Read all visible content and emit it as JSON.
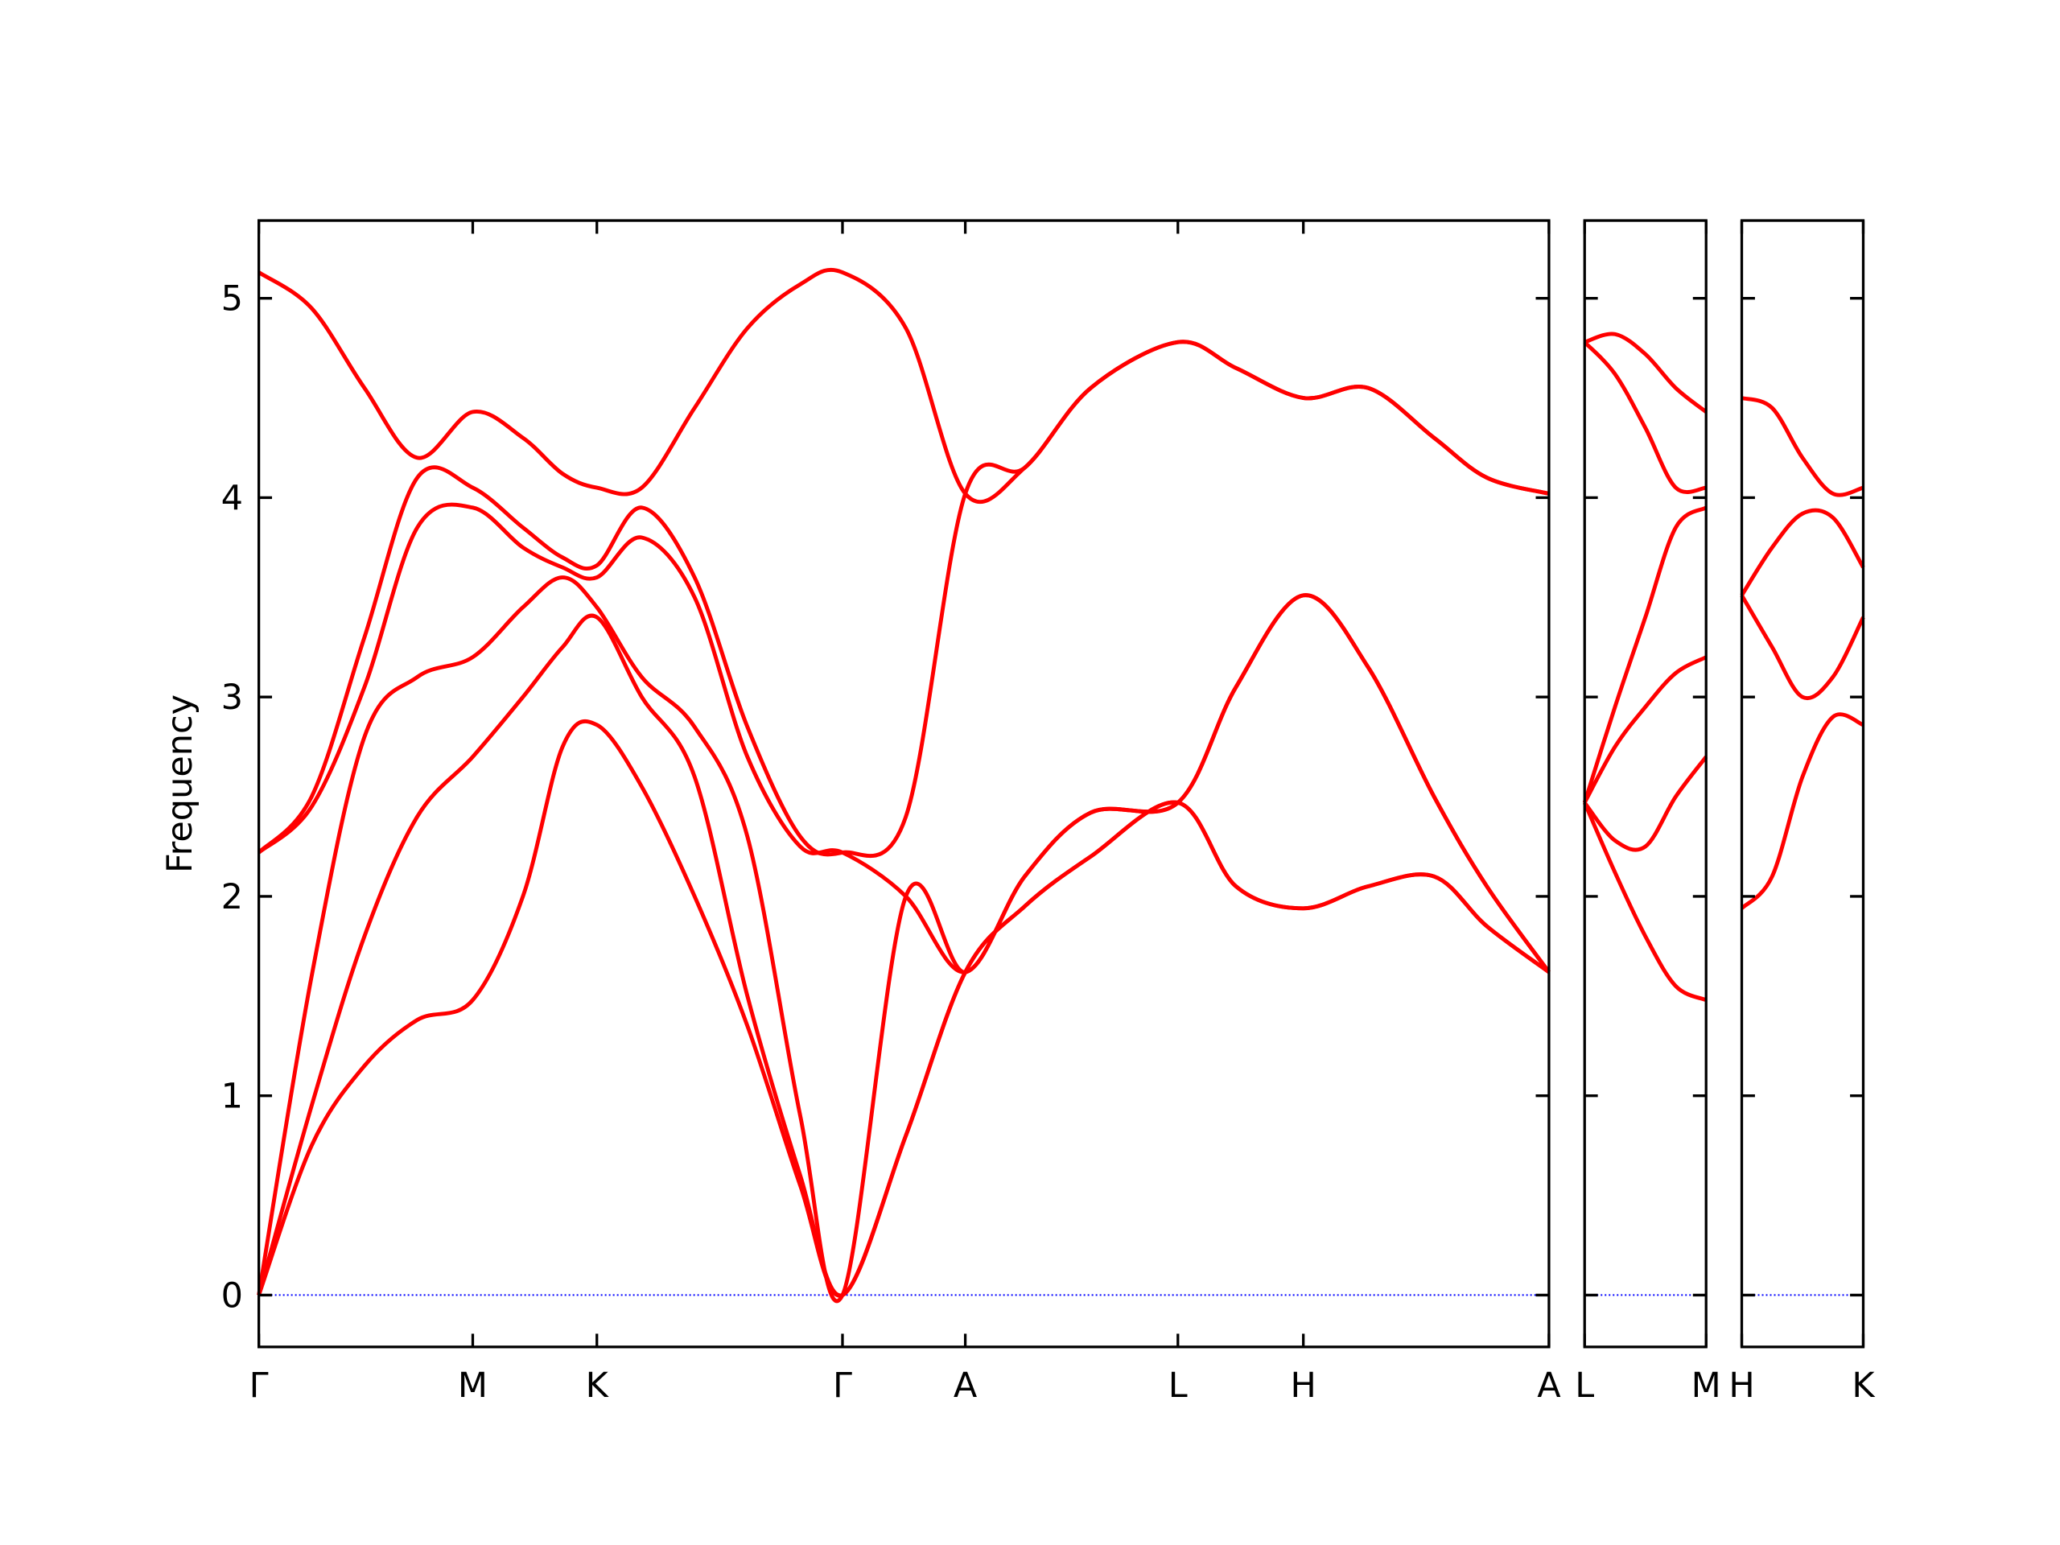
{
  "chart_data": [
    {
      "type": "line",
      "ylabel": "Frequency",
      "color": "#ff0000",
      "hline": {
        "y": 0,
        "color": "#0000ff"
      },
      "xlim": [
        0,
        9.77
      ],
      "ylim": [
        -0.26,
        5.39
      ],
      "yticks": [
        0,
        1,
        2,
        3,
        4,
        5
      ],
      "xticks": [
        {
          "value": 0,
          "label": "Γ"
        },
        {
          "value": 1.62,
          "label": "M"
        },
        {
          "value": 2.56,
          "label": "K"
        },
        {
          "value": 4.42,
          "label": "Γ"
        },
        {
          "value": 5.35,
          "label": "A"
        },
        {
          "value": 6.96,
          "label": "L"
        },
        {
          "value": 7.91,
          "label": "H"
        },
        {
          "value": 9.77,
          "label": "A"
        }
      ],
      "x": [
        0,
        0.4,
        0.8,
        1.2,
        1.62,
        2.0,
        2.3,
        2.56,
        2.9,
        3.3,
        3.7,
        4.1,
        4.42,
        4.9,
        5.35,
        5.8,
        6.3,
        6.96,
        7.4,
        7.91,
        8.4,
        8.9,
        9.3,
        9.77
      ],
      "series": [
        {
          "values": [
            0,
            0.75,
            1.15,
            1.38,
            1.48,
            2.0,
            2.75,
            2.86,
            2.55,
            2.0,
            1.35,
            0.55,
            0,
            0.8,
            1.62,
            1.95,
            2.2,
            2.47,
            2.05,
            1.94,
            2.05,
            2.1,
            1.85,
            1.62
          ]
        },
        {
          "values": [
            0,
            0.95,
            1.8,
            2.4,
            2.7,
            3.0,
            3.25,
            3.4,
            3.0,
            2.6,
            1.5,
            0.6,
            0,
            0.8,
            1.62,
            1.95,
            2.2,
            2.47,
            2.05,
            1.94,
            2.05,
            2.1,
            1.85,
            1.62
          ]
        },
        {
          "values": [
            0,
            1.6,
            2.8,
            3.1,
            3.2,
            3.45,
            3.6,
            3.45,
            3.1,
            2.85,
            2.3,
            0.9,
            0,
            2.0,
            1.62,
            2.1,
            2.42,
            2.47,
            3.05,
            3.51,
            3.15,
            2.5,
            2.05,
            1.62
          ]
        },
        {
          "values": [
            2.22,
            2.45,
            3.05,
            3.85,
            3.95,
            3.75,
            3.65,
            3.6,
            3.8,
            3.5,
            2.7,
            2.25,
            2.22,
            2.0,
            1.62,
            2.1,
            2.42,
            2.47,
            3.05,
            3.51,
            3.15,
            2.5,
            2.05,
            1.62
          ]
        },
        {
          "values": [
            2.22,
            2.5,
            3.3,
            4.1,
            4.05,
            3.85,
            3.7,
            3.66,
            3.95,
            3.6,
            2.85,
            2.3,
            2.22,
            2.4,
            4.02,
            4.15,
            4.55,
            4.78,
            4.65,
            4.5,
            4.55,
            4.3,
            4.1,
            4.02
          ]
        },
        {
          "values": [
            5.13,
            4.95,
            4.55,
            4.2,
            4.43,
            4.3,
            4.12,
            4.05,
            4.05,
            4.45,
            4.85,
            5.07,
            5.13,
            4.85,
            4.02,
            4.15,
            4.55,
            4.78,
            4.65,
            4.5,
            4.55,
            4.3,
            4.1,
            4.02
          ]
        }
      ]
    },
    {
      "type": "line",
      "color": "#ff0000",
      "hline": {
        "y": 0,
        "color": "#0000ff"
      },
      "xlim": [
        0,
        0.92
      ],
      "ylim": [
        -0.26,
        5.39
      ],
      "xticks": [
        {
          "value": 0,
          "label": "L"
        },
        {
          "value": 0.92,
          "label": "M"
        }
      ],
      "x": [
        0,
        0.23,
        0.46,
        0.69,
        0.92
      ],
      "series": [
        {
          "values": [
            2.47,
            2.12,
            1.8,
            1.55,
            1.48
          ]
        },
        {
          "values": [
            2.47,
            2.28,
            2.25,
            2.5,
            2.7
          ]
        },
        {
          "values": [
            2.47,
            2.75,
            2.95,
            3.12,
            3.2
          ]
        },
        {
          "values": [
            2.47,
            2.95,
            3.4,
            3.85,
            3.95
          ]
        },
        {
          "values": [
            4.78,
            4.62,
            4.35,
            4.05,
            4.05
          ]
        },
        {
          "values": [
            4.78,
            4.82,
            4.72,
            4.55,
            4.43
          ]
        }
      ]
    },
    {
      "type": "line",
      "color": "#ff0000",
      "hline": {
        "y": 0,
        "color": "#0000ff"
      },
      "xlim": [
        0,
        0.92
      ],
      "ylim": [
        -0.26,
        5.39
      ],
      "xticks": [
        {
          "value": 0,
          "label": "H"
        },
        {
          "value": 0.92,
          "label": "K"
        }
      ],
      "x": [
        0,
        0.23,
        0.46,
        0.69,
        0.92
      ],
      "series": [
        {
          "values": [
            1.94,
            2.1,
            2.6,
            2.9,
            2.86
          ]
        },
        {
          "values": [
            3.51,
            3.25,
            3.0,
            3.1,
            3.4
          ]
        },
        {
          "values": [
            3.51,
            3.75,
            3.92,
            3.9,
            3.65
          ]
        },
        {
          "values": [
            4.5,
            4.45,
            4.2,
            4.02,
            4.05
          ]
        }
      ]
    }
  ]
}
